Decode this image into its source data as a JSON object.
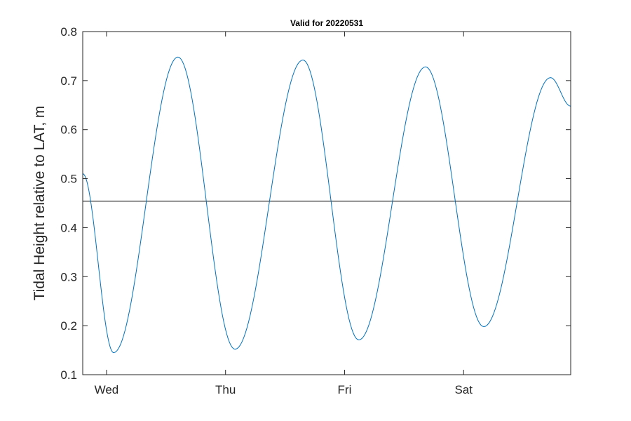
{
  "chart_data": {
    "type": "line",
    "title": "Valid for 20220531",
    "xlabel": "",
    "ylabel": "Tidal Height relative to LAT, m",
    "ylim": [
      0.1,
      0.8
    ],
    "yticks": [
      0.1,
      0.2,
      0.3,
      0.4,
      0.5,
      0.6,
      0.7,
      0.8
    ],
    "ytick_labels": [
      "0.1",
      "0.2",
      "0.3",
      "0.4",
      "0.5",
      "0.6",
      "0.7",
      "0.8"
    ],
    "xlim_days": [
      -0.2,
      3.9
    ],
    "xticks": [
      0,
      1,
      2,
      3
    ],
    "xtick_labels": [
      "Wed",
      "Thu",
      "Fri",
      "Sat"
    ],
    "grid": false,
    "series": [
      {
        "color": "#0072bd",
        "x_days": [
          -0.2,
          0.06,
          0.6,
          1.08,
          1.65,
          2.12,
          2.68,
          3.17,
          3.73,
          3.9
        ],
        "y": [
          0.51,
          0.145,
          0.748,
          0.152,
          0.742,
          0.171,
          0.728,
          0.198,
          0.706,
          0.648
        ]
      }
    ],
    "reference_line": {
      "y": 0.454,
      "color": "#000000"
    }
  }
}
